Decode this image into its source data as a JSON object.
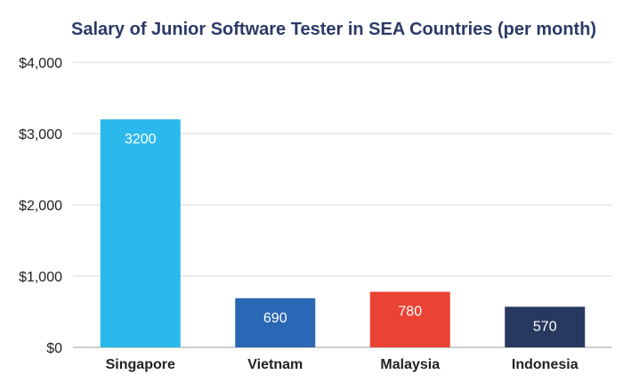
{
  "chart_data": {
    "type": "bar",
    "title": "Salary of Junior Software Tester in SEA Countries (per month)",
    "xlabel": "",
    "ylabel": "",
    "categories": [
      "Singapore",
      "Vietnam",
      "Malaysia",
      "Indonesia"
    ],
    "values": [
      3200,
      690,
      780,
      570
    ],
    "data_labels": [
      "3200",
      "690",
      "780",
      "570"
    ],
    "bar_colors": [
      "#2bb8ea",
      "#2a67b5",
      "#ea4335",
      "#27395e"
    ],
    "ylim": [
      0,
      4000
    ],
    "yticks": [
      0,
      1000,
      2000,
      3000,
      4000
    ],
    "ytick_labels": [
      "$0",
      "$1,000",
      "$2,000",
      "$3,000",
      "$4,000"
    ],
    "grid": true,
    "legend": "none",
    "title_color": "#2b3a67"
  }
}
